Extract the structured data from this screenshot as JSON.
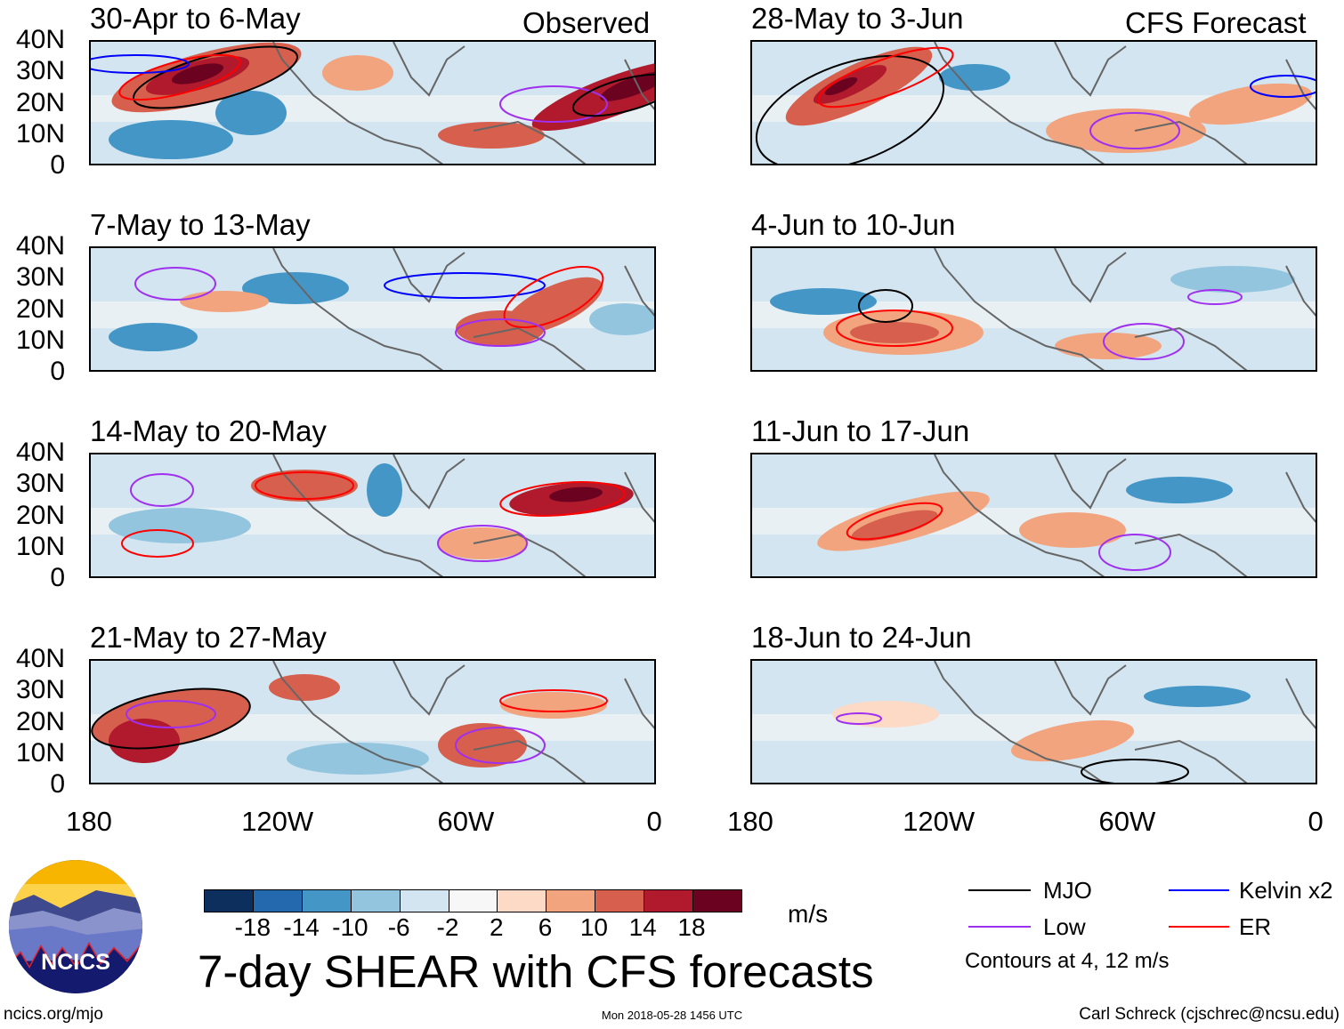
{
  "columns": {
    "left_label": "Observed",
    "right_label": "CFS Forecast"
  },
  "panels": [
    {
      "title": "30-Apr to 6-May",
      "column": "observed"
    },
    {
      "title": "7-May to 13-May",
      "column": "observed"
    },
    {
      "title": "14-May to 20-May",
      "column": "observed"
    },
    {
      "title": "21-May to 27-May",
      "column": "observed"
    },
    {
      "title": "28-May to 3-Jun",
      "column": "forecast"
    },
    {
      "title": "4-Jun to 10-Jun",
      "column": "forecast"
    },
    {
      "title": "11-Jun to 17-Jun",
      "column": "forecast"
    },
    {
      "title": "18-Jun to 24-Jun",
      "column": "forecast"
    }
  ],
  "y_ticks": [
    "40N",
    "30N",
    "20N",
    "10N",
    "0"
  ],
  "x_ticks": [
    "180",
    "120W",
    "60W",
    "0"
  ],
  "colorbar": {
    "labels": [
      "-18",
      "-14",
      "-10",
      "-6",
      "-2",
      "2",
      "6",
      "10",
      "14",
      "18"
    ],
    "colors": [
      "#0d2f5e",
      "#2468ad",
      "#4496c6",
      "#93c5df",
      "#d2e5f0",
      "#f7f7f7",
      "#fcdac6",
      "#f2a47f",
      "#d6604d",
      "#b01a2c",
      "#6a0220"
    ],
    "units": "m/s"
  },
  "title": "7-day SHEAR with CFS forecasts",
  "legend": {
    "items": [
      {
        "label": "MJO",
        "color": "#000000"
      },
      {
        "label": "Kelvin x2",
        "color": "#0000ff"
      },
      {
        "label": "Low",
        "color": "#a030f0"
      },
      {
        "label": "ER",
        "color": "#ff0000"
      }
    ],
    "note": "Contours at 4, 12 m/s"
  },
  "logo": {
    "text": "NCICS"
  },
  "footer": {
    "url": "ncics.org/mjo",
    "timestamp": "Mon 2018-05-28 1456 UTC",
    "credit": "Carl Schreck (cjschrec@ncsu.edu)"
  }
}
